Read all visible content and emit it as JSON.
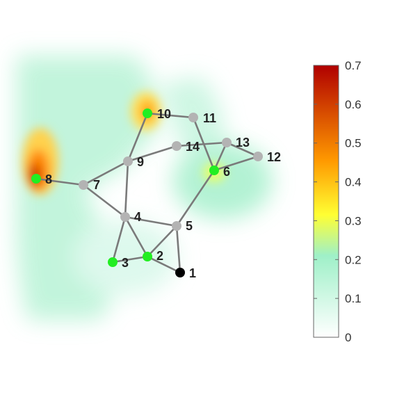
{
  "colorbar": {
    "min": 0,
    "max": 0.7,
    "ticks": [
      "0",
      "0.1",
      "0.2",
      "0.3",
      "0.4",
      "0.5",
      "0.6",
      "0.7"
    ],
    "gradient": [
      "#ffffff",
      "#9ff0c8",
      "#ffff33",
      "#ff9900",
      "#b00000"
    ]
  },
  "graph": {
    "colors": {
      "green": "#22ee22",
      "gray": "#b3b3b3",
      "black": "#000000",
      "edge": "#7a7a7a"
    },
    "nodes": [
      {
        "id": "1",
        "label": "1",
        "color": "black"
      },
      {
        "id": "2",
        "label": "2",
        "color": "green"
      },
      {
        "id": "3",
        "label": "3",
        "color": "green"
      },
      {
        "id": "4",
        "label": "4",
        "color": "gray"
      },
      {
        "id": "5",
        "label": "5",
        "color": "gray"
      },
      {
        "id": "6",
        "label": "6",
        "color": "green"
      },
      {
        "id": "7",
        "label": "7",
        "color": "gray"
      },
      {
        "id": "8",
        "label": "8",
        "color": "green"
      },
      {
        "id": "9",
        "label": "9",
        "color": "gray"
      },
      {
        "id": "10",
        "label": "10",
        "color": "green"
      },
      {
        "id": "11",
        "label": "11",
        "color": "gray"
      },
      {
        "id": "12",
        "label": "12",
        "color": "gray"
      },
      {
        "id": "13",
        "label": "13",
        "color": "gray"
      },
      {
        "id": "14",
        "label": "14",
        "color": "gray"
      }
    ],
    "edges": [
      [
        "1",
        "2"
      ],
      [
        "1",
        "5"
      ],
      [
        "2",
        "3"
      ],
      [
        "2",
        "4"
      ],
      [
        "2",
        "5"
      ],
      [
        "3",
        "4"
      ],
      [
        "4",
        "5"
      ],
      [
        "4",
        "7"
      ],
      [
        "4",
        "9"
      ],
      [
        "5",
        "6"
      ],
      [
        "6",
        "11"
      ],
      [
        "6",
        "12"
      ],
      [
        "6",
        "13"
      ],
      [
        "7",
        "8"
      ],
      [
        "7",
        "9"
      ],
      [
        "9",
        "10"
      ],
      [
        "9",
        "14"
      ],
      [
        "10",
        "11"
      ],
      [
        "12",
        "13"
      ],
      [
        "13",
        "14"
      ]
    ]
  }
}
